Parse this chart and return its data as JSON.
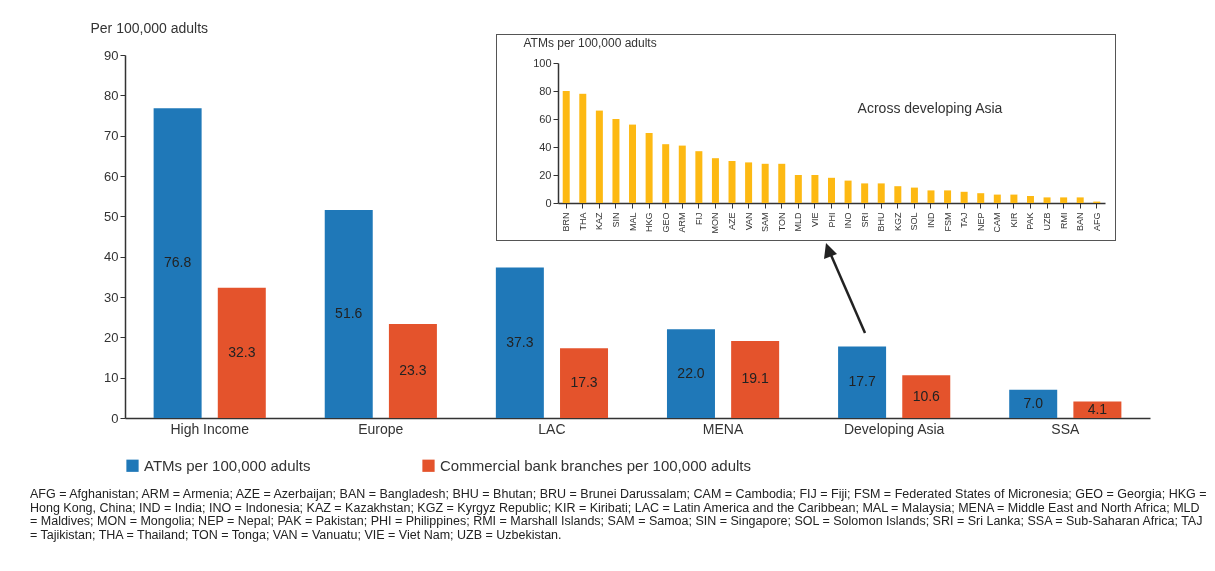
{
  "chart_data": [
    {
      "type": "bar",
      "ylabel": "Per 100,000 adults",
      "categories": [
        "High Income",
        "Europe",
        "LAC",
        "MENA",
        "Developing Asia",
        "SSA"
      ],
      "series": [
        {
          "name": "ATMs per 100,000 adults",
          "color": "#1f78b8",
          "values": [
            76.8,
            51.6,
            37.3,
            22.0,
            17.7,
            7.0
          ],
          "value_labels": [
            "76.8",
            "51.6",
            "37.3",
            "22.0",
            "17.7",
            "7.0"
          ]
        },
        {
          "name": "Commercial bank branches per 100,000 adults",
          "color": "#e4532c",
          "values": [
            32.3,
            23.3,
            17.3,
            19.1,
            10.6,
            4.1
          ],
          "value_labels": [
            "32.3",
            "23.3",
            "17.3",
            "19.1",
            "10.6",
            "4.1"
          ]
        }
      ],
      "ylim": [
        0,
        90
      ],
      "yticks": [
        0,
        10,
        20,
        30,
        40,
        50,
        60,
        70,
        80,
        90
      ],
      "legend": "bottom",
      "annotations": [
        "AFG = Afghanistan; ARM = Armenia; AZE = Azerbaijan; BAN = Bangladesh; BHU = Bhutan; BRU = Brunei Darussalam; CAM = Cambodia; FIJ = Fiji; FSM = Federated States of Micronesia; GEO = Georgia; HKG = Hong Kong, China; IND = India; INO = Indonesia; KAZ = Kazakhstan; KGZ = Kyrgyz Republic; KIR = Kiribati; LAC = Latin America and the Caribbean; MAL = Malaysia; MENA = Middle East and North Africa; MLD = Maldives; MON = Mongolia; NEP = Nepal; PAK = Pakistan; PHI = Philippines; RMI = Marshall Islands; SAM = Samoa; SIN = Singapore; SOL = Solomon Islands; SRI = Sri Lanka; SSA = Sub-Saharan Africa; TAJ = Tajikistan; THA = Thailand; TON = Tonga; VAN = Vanuatu; VIE = Viet Nam; UZB = Uzbekistan."
      ]
    },
    {
      "type": "bar",
      "ylabel": "ATMs per 100,000 adults",
      "categories": [
        "BRN",
        "THA",
        "KAZ",
        "SIN",
        "MAL",
        "HKG",
        "GEO",
        "ARM",
        "FIJ",
        "MON",
        "AZE",
        "VAN",
        "SAM",
        "TON",
        "MLD",
        "VIE",
        "PHI",
        "INO",
        "SRI",
        "BHU",
        "KGZ",
        "SOL",
        "IND",
        "FSM",
        "TAJ",
        "NEP",
        "CAM",
        "KIR",
        "PAK",
        "UZB",
        "RMI",
        "BAN",
        "AFG"
      ],
      "values": [
        80,
        78,
        66,
        60,
        56,
        50,
        42,
        41,
        37,
        32,
        30,
        29,
        28,
        28,
        20,
        20,
        18,
        16,
        14,
        14,
        12,
        11,
        9,
        9,
        8,
        7,
        6,
        6,
        5,
        4,
        4,
        4,
        1
      ],
      "color": "#fdb913",
      "ylim": [
        0,
        100
      ],
      "yticks": [
        0,
        20,
        40,
        60,
        80,
        100
      ],
      "annotations": [
        "Across developing Asia"
      ]
    }
  ]
}
